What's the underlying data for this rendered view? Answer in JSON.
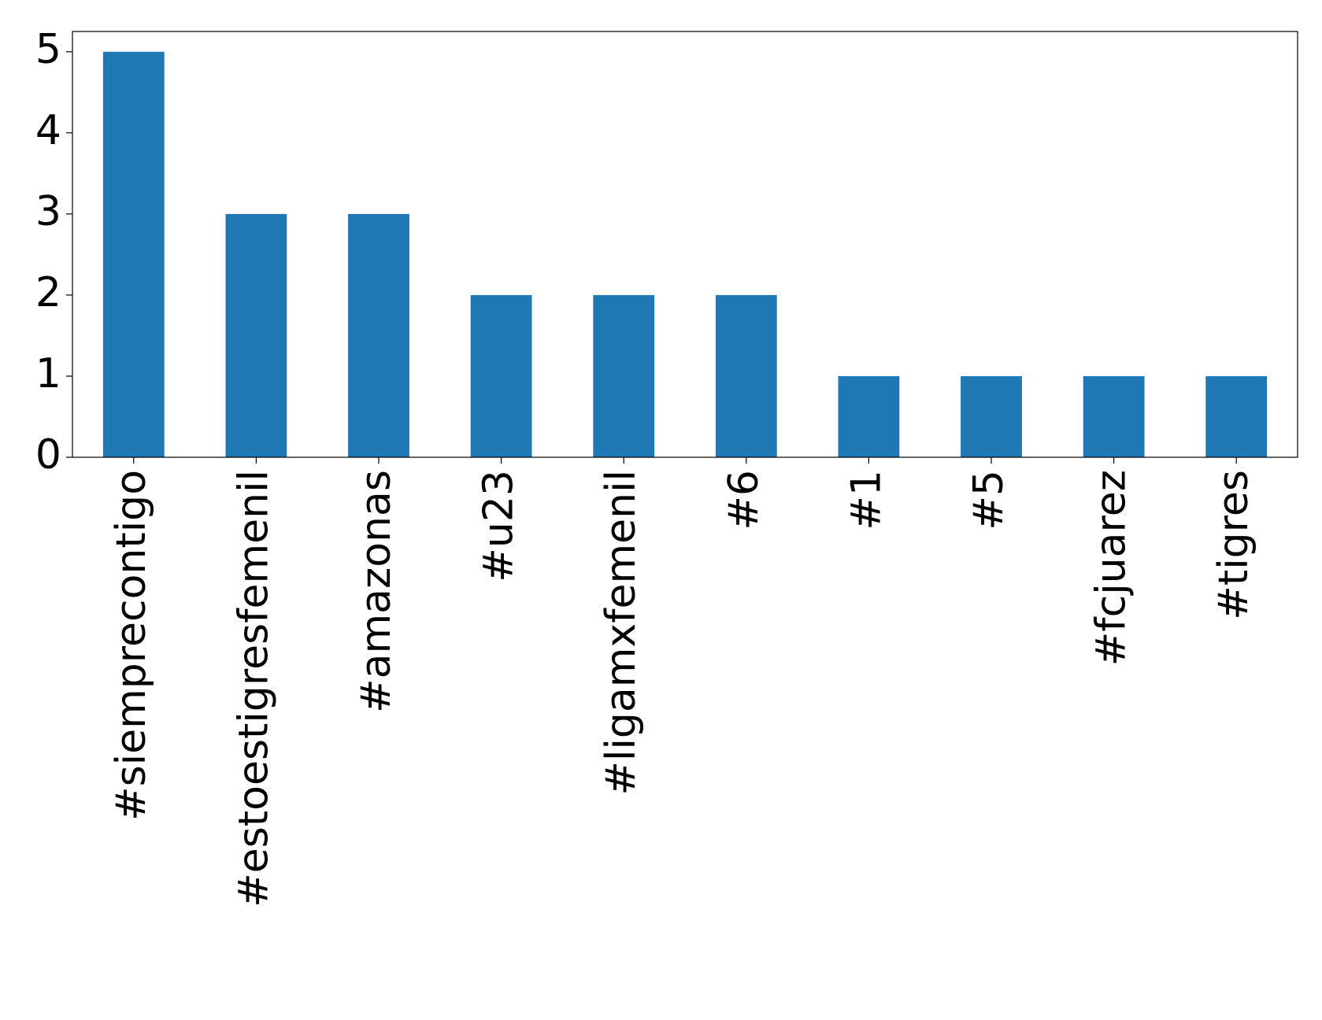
{
  "chart_data": {
    "type": "bar",
    "categories": [
      "#siemprecontigo",
      "#estoestigresfemenil",
      "#amazonas",
      "#u23",
      "#ligamxfemenil",
      "#6",
      "#1",
      "#5",
      "#fcjuarez",
      "#tigres"
    ],
    "values": [
      5,
      3,
      3,
      2,
      2,
      2,
      1,
      1,
      1,
      1
    ],
    "color": "#1f77b4",
    "ylim": [
      0,
      5.25
    ],
    "yticks": [
      0,
      1,
      2,
      3,
      4,
      5
    ],
    "grid": false
  }
}
